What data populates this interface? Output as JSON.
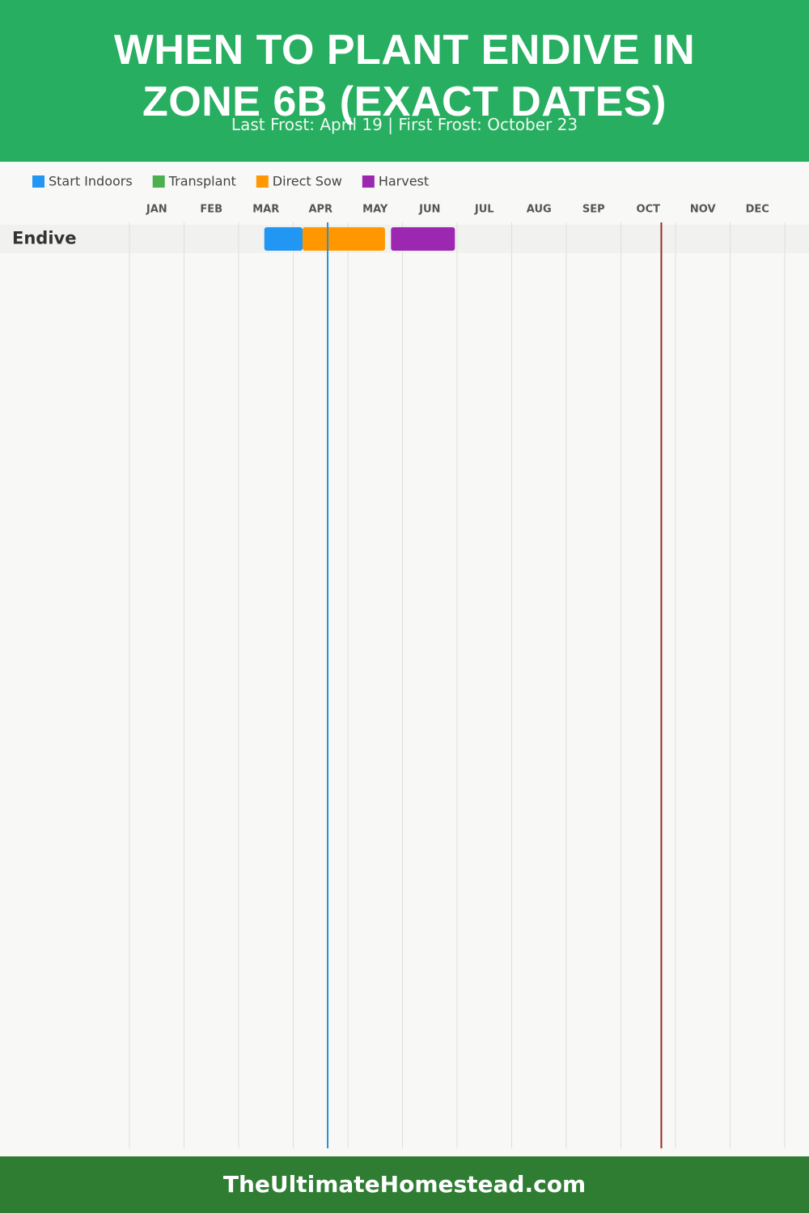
{
  "header": {
    "title": "WHEN TO PLANT ENDIVE IN ZONE 6B (EXACT DATES)",
    "subtitle": "Last Frost: April 19 | First Frost: October 23"
  },
  "chart_data": {
    "type": "gantt",
    "series": [
      {
        "name": "Start Indoors",
        "color": "#2196f3"
      },
      {
        "name": "Transplant",
        "color": "#4caf50"
      },
      {
        "name": "Direct Sow",
        "color": "#ff9800"
      },
      {
        "name": "Harvest",
        "color": "#9c27b0"
      }
    ],
    "categories": [
      "JAN",
      "FEB",
      "MAR",
      "APR",
      "MAY",
      "JUN",
      "JUL",
      "AUG",
      "SEP",
      "OCT",
      "NOV",
      "DEC"
    ],
    "xlim": [
      0,
      12
    ],
    "grid": true,
    "rows": [
      {
        "label": "Endive",
        "bars": [
          {
            "series": 0,
            "start": 2.47,
            "end": 3.17
          },
          {
            "series": 2,
            "start": 3.17,
            "end": 4.68
          },
          {
            "series": 3,
            "start": 4.79,
            "end": 5.96
          }
        ]
      }
    ],
    "markers": [
      {
        "value": 3.63,
        "color": "#2a8fd8"
      },
      {
        "value": 9.74,
        "color": "#9b2a2a"
      }
    ]
  },
  "footer": {
    "text": "TheUltimateHomestead.com"
  }
}
